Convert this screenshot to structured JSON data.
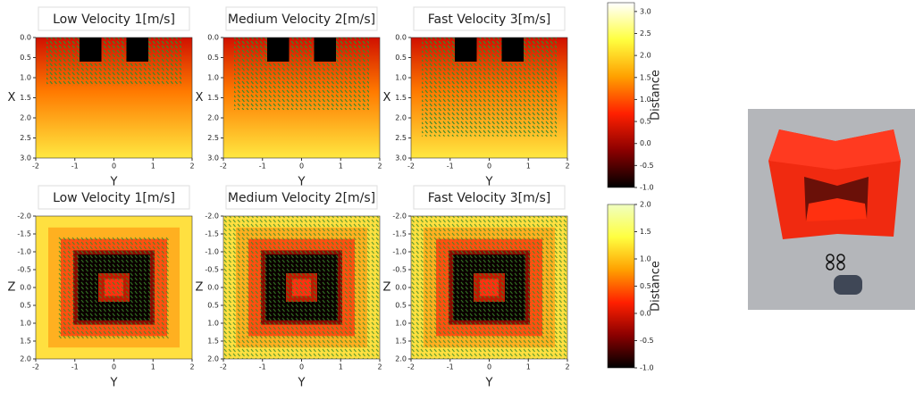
{
  "chart_data": [
    {
      "type": "heatmap",
      "title": "Low Velocity 1[m/s]",
      "xlabel": "Y",
      "ylabel": "X",
      "xlim": [
        -2,
        2
      ],
      "ylim": [
        0,
        3
      ],
      "y_inverted": true,
      "xticks": [
        -2,
        -1,
        0,
        1,
        2
      ],
      "yticks": [
        {
          "value": 0,
          "label": "0.0"
        },
        {
          "value": 0.5,
          "label": "0.5"
        },
        {
          "value": 1,
          "label": "1.0"
        },
        {
          "value": 1.5,
          "label": "1.5"
        },
        {
          "value": 2,
          "label": "2.0"
        },
        {
          "value": 2.5,
          "label": "2.5"
        },
        {
          "value": 3,
          "label": "3.0"
        }
      ]
    },
    {
      "type": "heatmap",
      "title": "Medium Velocity 2[m/s]",
      "xlabel": "Y",
      "ylabel": "X",
      "xlim": [
        -2,
        2
      ],
      "ylim": [
        0,
        3
      ],
      "y_inverted": true,
      "xticks": [
        -2,
        -1,
        0,
        1,
        2
      ],
      "yticks": [
        {
          "value": 0,
          "label": "0.0"
        },
        {
          "value": 0.5,
          "label": "0.5"
        },
        {
          "value": 1,
          "label": "1.0"
        },
        {
          "value": 1.5,
          "label": "1.5"
        },
        {
          "value": 2,
          "label": "2.0"
        },
        {
          "value": 2.5,
          "label": "2.5"
        },
        {
          "value": 3,
          "label": "3.0"
        }
      ]
    },
    {
      "type": "heatmap",
      "title": "Fast Velocity 3[m/s]",
      "xlabel": "Y",
      "ylabel": "X",
      "xlim": [
        -2,
        2
      ],
      "ylim": [
        0,
        3
      ],
      "y_inverted": true,
      "xticks": [
        -2,
        -1,
        0,
        1,
        2
      ],
      "yticks": [
        {
          "value": 0,
          "label": "0.0"
        },
        {
          "value": 0.5,
          "label": "0.5"
        },
        {
          "value": 1,
          "label": "1.0"
        },
        {
          "value": 1.5,
          "label": "1.5"
        },
        {
          "value": 2,
          "label": "2.0"
        },
        {
          "value": 2.5,
          "label": "2.5"
        },
        {
          "value": 3,
          "label": "3.0"
        }
      ]
    },
    {
      "type": "heatmap",
      "title": "Low Velocity 1[m/s]",
      "xlabel": "Y",
      "ylabel": "Z",
      "xlim": [
        -2,
        2
      ],
      "ylim": [
        -2,
        2
      ],
      "y_inverted": true,
      "xticks": [
        -2,
        -1,
        0,
        1,
        2
      ],
      "yticks": [
        {
          "value": -2,
          "label": "-2.0"
        },
        {
          "value": -1.5,
          "label": "-1.5"
        },
        {
          "value": -1,
          "label": "-1.0"
        },
        {
          "value": -0.5,
          "label": "-0.5"
        },
        {
          "value": 0,
          "label": "0.0"
        },
        {
          "value": 0.5,
          "label": "0.5"
        },
        {
          "value": 1,
          "label": "1.0"
        },
        {
          "value": 1.5,
          "label": "1.5"
        },
        {
          "value": 2,
          "label": "2.0"
        }
      ]
    },
    {
      "type": "heatmap",
      "title": "Medium Velocity 2[m/s]",
      "xlabel": "Y",
      "ylabel": "Z",
      "xlim": [
        -2,
        2
      ],
      "ylim": [
        -2,
        2
      ],
      "y_inverted": true,
      "xticks": [
        -2,
        -1,
        0,
        1,
        2
      ],
      "yticks": [
        {
          "value": -2,
          "label": "-2.0"
        },
        {
          "value": -1.5,
          "label": "-1.5"
        },
        {
          "value": -1,
          "label": "-1.0"
        },
        {
          "value": -0.5,
          "label": "-0.5"
        },
        {
          "value": 0,
          "label": "0.0"
        },
        {
          "value": 0.5,
          "label": "0.5"
        },
        {
          "value": 1,
          "label": "1.0"
        },
        {
          "value": 1.5,
          "label": "1.5"
        },
        {
          "value": 2,
          "label": "2.0"
        }
      ]
    },
    {
      "type": "heatmap",
      "title": "Fast Velocity 3[m/s]",
      "xlabel": "Y",
      "ylabel": "Z",
      "xlim": [
        -2,
        2
      ],
      "ylim": [
        -2,
        2
      ],
      "y_inverted": true,
      "xticks": [
        -2,
        -1,
        0,
        1,
        2
      ],
      "yticks": [
        {
          "value": -2,
          "label": "-2.0"
        },
        {
          "value": -1.5,
          "label": "-1.5"
        },
        {
          "value": -1,
          "label": "-1.0"
        },
        {
          "value": -0.5,
          "label": "-0.5"
        },
        {
          "value": 0,
          "label": "0.0"
        },
        {
          "value": 0.5,
          "label": "0.5"
        },
        {
          "value": 1,
          "label": "1.0"
        },
        {
          "value": 1.5,
          "label": "1.5"
        },
        {
          "value": 2,
          "label": "2.0"
        }
      ]
    },
    {
      "type": "colorbar",
      "label": "Distance",
      "colormap": [
        "#000000",
        "#8b0000",
        "#ff2000",
        "#ffa000",
        "#ffff40",
        "#ffffff"
      ],
      "ylim": [
        -1.0,
        3.2
      ],
      "yticks": [
        {
          "value": -1,
          "label": "-1.0"
        },
        {
          "value": -0.5,
          "label": "-0.5"
        },
        {
          "value": 0,
          "label": "0.0"
        },
        {
          "value": 0.5,
          "label": "0.5"
        },
        {
          "value": 1,
          "label": "1.0"
        },
        {
          "value": 1.5,
          "label": "1.5"
        },
        {
          "value": 2,
          "label": "2.0"
        },
        {
          "value": 2.5,
          "label": "2.5"
        },
        {
          "value": 3,
          "label": "3.0"
        }
      ]
    },
    {
      "type": "colorbar",
      "label": "Distance",
      "colormap": [
        "#000000",
        "#8b0000",
        "#ff2000",
        "#ffa000",
        "#ffff40",
        "#f0ffc0"
      ],
      "ylim": [
        -1.0,
        2.0
      ],
      "yticks": [
        {
          "value": -1,
          "label": "-1.0"
        },
        {
          "value": -0.5,
          "label": "-0.5"
        },
        {
          "value": 0,
          "label": "0.0"
        },
        {
          "value": 0.5,
          "label": "0.5"
        },
        {
          "value": 1,
          "label": "1.0"
        },
        {
          "value": 1.5,
          "label": "1.5"
        },
        {
          "value": 2,
          "label": "2.0"
        }
      ]
    }
  ]
}
